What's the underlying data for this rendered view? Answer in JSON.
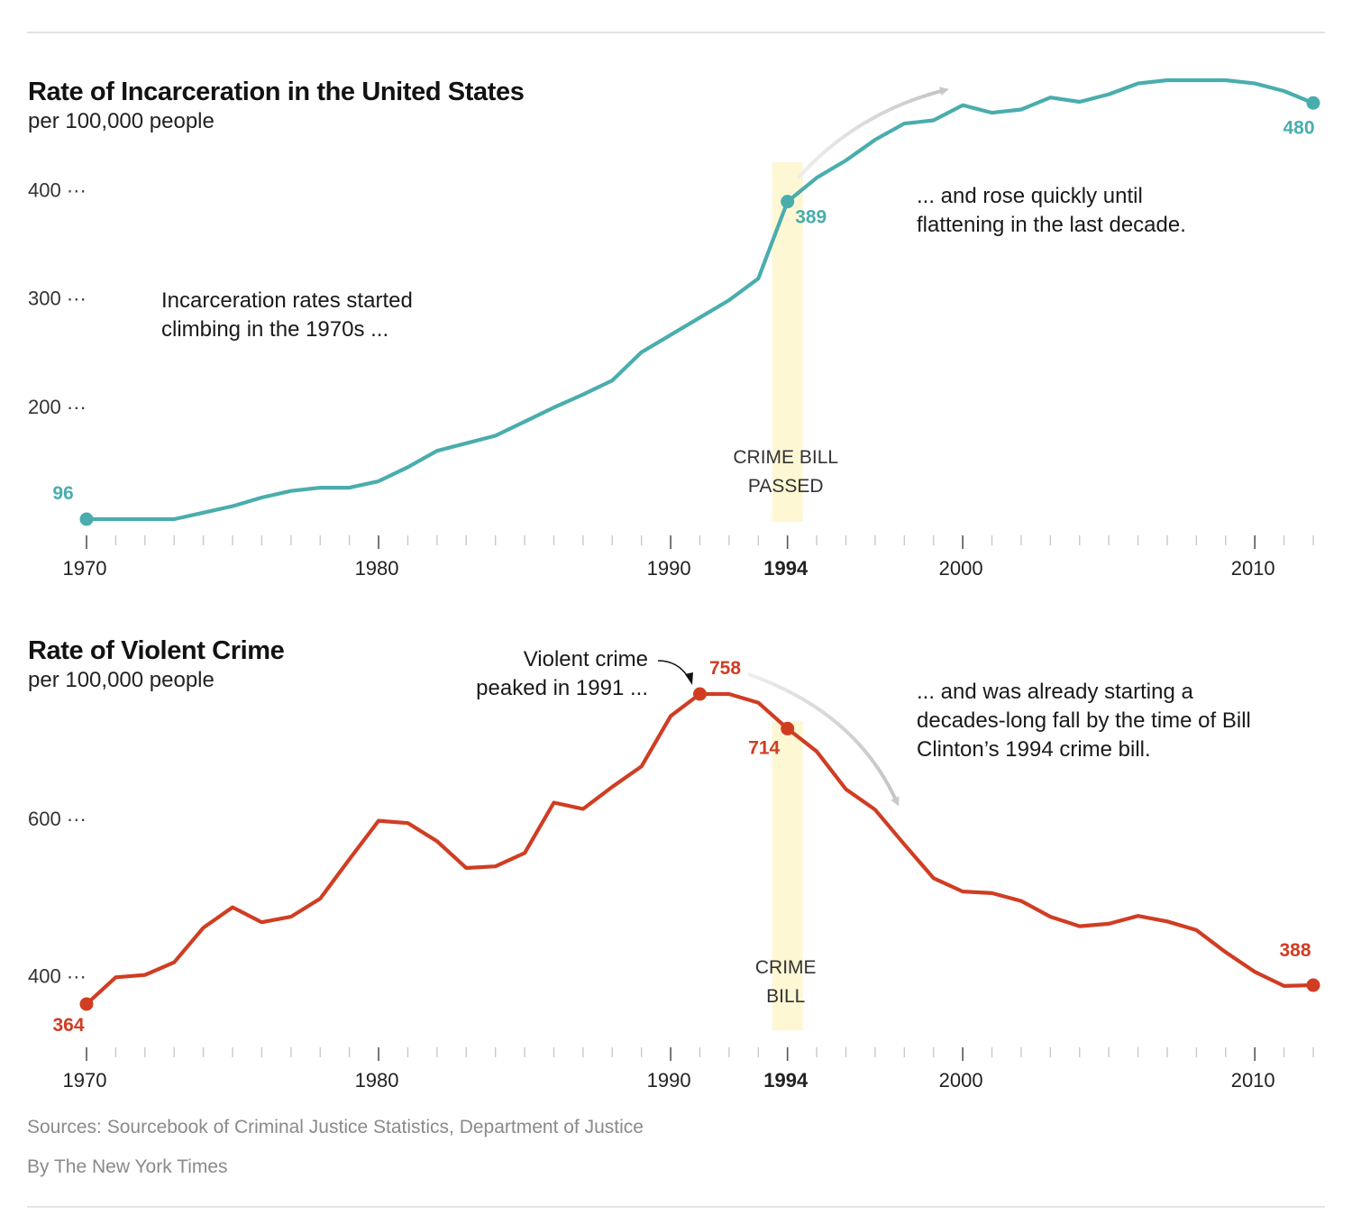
{
  "chart_data": [
    {
      "type": "line",
      "title": "Rate of Incarceration in the United States",
      "subtitle": "per 100,000 people",
      "color": "#4aadad",
      "xlim": [
        1970,
        2012
      ],
      "ylim": [
        78,
        495
      ],
      "yticks": [
        200,
        300,
        400
      ],
      "xticks": [
        1970,
        1980,
        1990,
        1994,
        2000,
        2010
      ],
      "x": [
        1970,
        1971,
        1972,
        1973,
        1974,
        1975,
        1976,
        1977,
        1978,
        1979,
        1980,
        1981,
        1982,
        1983,
        1984,
        1985,
        1986,
        1987,
        1988,
        1989,
        1990,
        1991,
        1992,
        1993,
        1994,
        1995,
        1996,
        1997,
        1998,
        1999,
        2000,
        2001,
        2002,
        2003,
        2004,
        2005,
        2006,
        2007,
        2008,
        2009,
        2010,
        2011,
        2012
      ],
      "values": [
        96,
        96,
        96,
        96,
        102,
        108,
        116,
        122,
        125,
        125,
        131,
        144,
        159,
        166,
        173,
        186,
        199,
        211,
        224,
        250,
        266,
        282,
        298,
        318,
        389,
        411,
        427,
        446,
        461,
        464,
        478,
        471,
        474,
        485,
        481,
        488,
        498,
        501,
        501,
        501,
        498,
        491,
        480
      ],
      "marked_points": [
        {
          "x": 1970,
          "label": "96"
        },
        {
          "x": 1994,
          "label": "389"
        },
        {
          "x": 2012,
          "label": "480"
        }
      ],
      "band_label": [
        "CRIME BILL",
        "PASSED"
      ],
      "annotations": [
        [
          "Incarceration rates started",
          "climbing in the 1970s ..."
        ],
        [
          "... and rose quickly until",
          "flattening in the last decade."
        ]
      ]
    },
    {
      "type": "line",
      "title": "Rate of Violent Crime",
      "subtitle": "per 100,000 people",
      "color": "#d03d23",
      "xlim": [
        1970,
        2012
      ],
      "ylim": [
        335,
        795
      ],
      "yticks": [
        400,
        600
      ],
      "xticks": [
        1970,
        1980,
        1990,
        1994,
        2000,
        2010
      ],
      "x": [
        1970,
        1971,
        1972,
        1973,
        1974,
        1975,
        1976,
        1977,
        1978,
        1979,
        1980,
        1981,
        1982,
        1983,
        1984,
        1985,
        1986,
        1987,
        1988,
        1989,
        1990,
        1991,
        1992,
        1993,
        1994,
        1995,
        1996,
        1997,
        1998,
        1999,
        2000,
        2001,
        2002,
        2003,
        2004,
        2005,
        2006,
        2007,
        2008,
        2009,
        2010,
        2011,
        2012
      ],
      "values": [
        364,
        398,
        401,
        417,
        461,
        487,
        468,
        475,
        498,
        548,
        597,
        594,
        571,
        537,
        539,
        556,
        620,
        612,
        640,
        666,
        730,
        758,
        758,
        747,
        714,
        685,
        637,
        611,
        567,
        524,
        507,
        505,
        495,
        475,
        463,
        466,
        476,
        469,
        458,
        430,
        405,
        387,
        388
      ],
      "marked_points": [
        {
          "x": 1970,
          "label": "364"
        },
        {
          "x": 1991,
          "label": "758"
        },
        {
          "x": 1994,
          "label": "714"
        },
        {
          "x": 2012,
          "label": "388"
        }
      ],
      "band_label": [
        "CRIME",
        "BILL"
      ],
      "annotations": [
        [
          "Violent crime",
          "peaked in 1991 ..."
        ],
        [
          "... and was already starting a",
          "decades-long fall by the time of Bill",
          "Clinton’s 1994 crime bill."
        ]
      ]
    }
  ],
  "footer": {
    "sources": "Sources: Sourcebook of Criminal Justice Statistics, Department of Justice",
    "credit": "By The New York Times"
  }
}
